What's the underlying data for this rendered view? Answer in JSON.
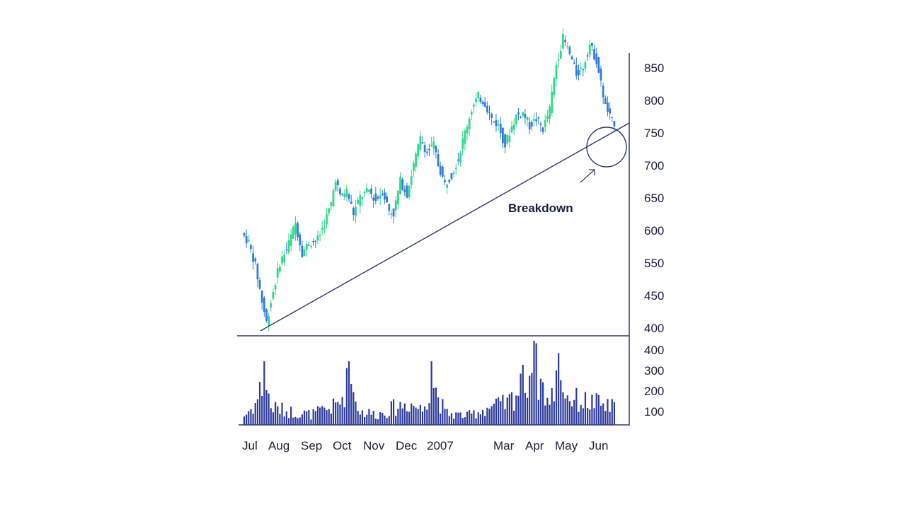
{
  "chart_data": {
    "type": "candlestick",
    "colors": {
      "up": "#2fd88a",
      "down": "#2f7de0",
      "volume": "#2c3a9c",
      "axis": "#2c3a6e",
      "trendline": "#2c3a6e"
    },
    "price_axis": {
      "ticks": [
        "850",
        "800",
        "750",
        "700",
        "650",
        "600",
        "550",
        "450",
        "400"
      ]
    },
    "volume_axis": {
      "ticks": [
        "400",
        "300",
        "200",
        "100"
      ]
    },
    "x_axis": {
      "labels": [
        "Jul",
        "Aug",
        "Sep",
        "Oct",
        "Nov",
        "Dec",
        "2007",
        "Mar",
        "Apr",
        "May",
        "Jun"
      ]
    },
    "annotation": {
      "text": "Breakdown"
    },
    "trendline": {
      "from": {
        "x": "Jul",
        "price": 402
      },
      "to": {
        "x": "Jun",
        "price": 765
      }
    },
    "highlight": {
      "x": "Jun",
      "price": 728
    },
    "price_anchors": [
      [
        0,
        545
      ],
      [
        3,
        530
      ],
      [
        6,
        495
      ],
      [
        9,
        440
      ],
      [
        11,
        408
      ],
      [
        14,
        455
      ],
      [
        17,
        500
      ],
      [
        20,
        520
      ],
      [
        24,
        560
      ],
      [
        27,
        515
      ],
      [
        30,
        530
      ],
      [
        34,
        535
      ],
      [
        37,
        560
      ],
      [
        40,
        590
      ],
      [
        42,
        630
      ],
      [
        44,
        600
      ],
      [
        47,
        610
      ],
      [
        50,
        575
      ],
      [
        53,
        600
      ],
      [
        57,
        610
      ],
      [
        60,
        595
      ],
      [
        63,
        610
      ],
      [
        66,
        580
      ],
      [
        68,
        575
      ],
      [
        71,
        625
      ],
      [
        74,
        605
      ],
      [
        77,
        650
      ],
      [
        80,
        690
      ],
      [
        83,
        670
      ],
      [
        86,
        680
      ],
      [
        88,
        650
      ],
      [
        91,
        620
      ],
      [
        94,
        635
      ],
      [
        97,
        660
      ],
      [
        100,
        700
      ],
      [
        103,
        735
      ],
      [
        106,
        755
      ],
      [
        109,
        745
      ],
      [
        112,
        720
      ],
      [
        115,
        710
      ],
      [
        118,
        680
      ],
      [
        120,
        700
      ],
      [
        123,
        725
      ],
      [
        126,
        730
      ],
      [
        129,
        710
      ],
      [
        132,
        720
      ],
      [
        135,
        705
      ],
      [
        138,
        735
      ],
      [
        141,
        805
      ],
      [
        144,
        845
      ],
      [
        147,
        820
      ],
      [
        150,
        790
      ],
      [
        153,
        800
      ],
      [
        156,
        835
      ],
      [
        159,
        810
      ],
      [
        161,
        775
      ],
      [
        163,
        740
      ],
      [
        166,
        715
      ]
    ],
    "volume_anchors": [
      [
        0,
        60
      ],
      [
        5,
        140
      ],
      [
        9,
        310
      ],
      [
        12,
        120
      ],
      [
        20,
        90
      ],
      [
        30,
        70
      ],
      [
        40,
        120
      ],
      [
        43,
        150
      ],
      [
        47,
        310
      ],
      [
        52,
        90
      ],
      [
        60,
        70
      ],
      [
        68,
        120
      ],
      [
        74,
        150
      ],
      [
        80,
        100
      ],
      [
        84,
        310
      ],
      [
        90,
        80
      ],
      [
        100,
        60
      ],
      [
        110,
        120
      ],
      [
        118,
        140
      ],
      [
        124,
        250
      ],
      [
        130,
        410
      ],
      [
        137,
        130
      ],
      [
        141,
        350
      ],
      [
        145,
        190
      ],
      [
        150,
        160
      ],
      [
        157,
        150
      ],
      [
        163,
        120
      ]
    ]
  }
}
